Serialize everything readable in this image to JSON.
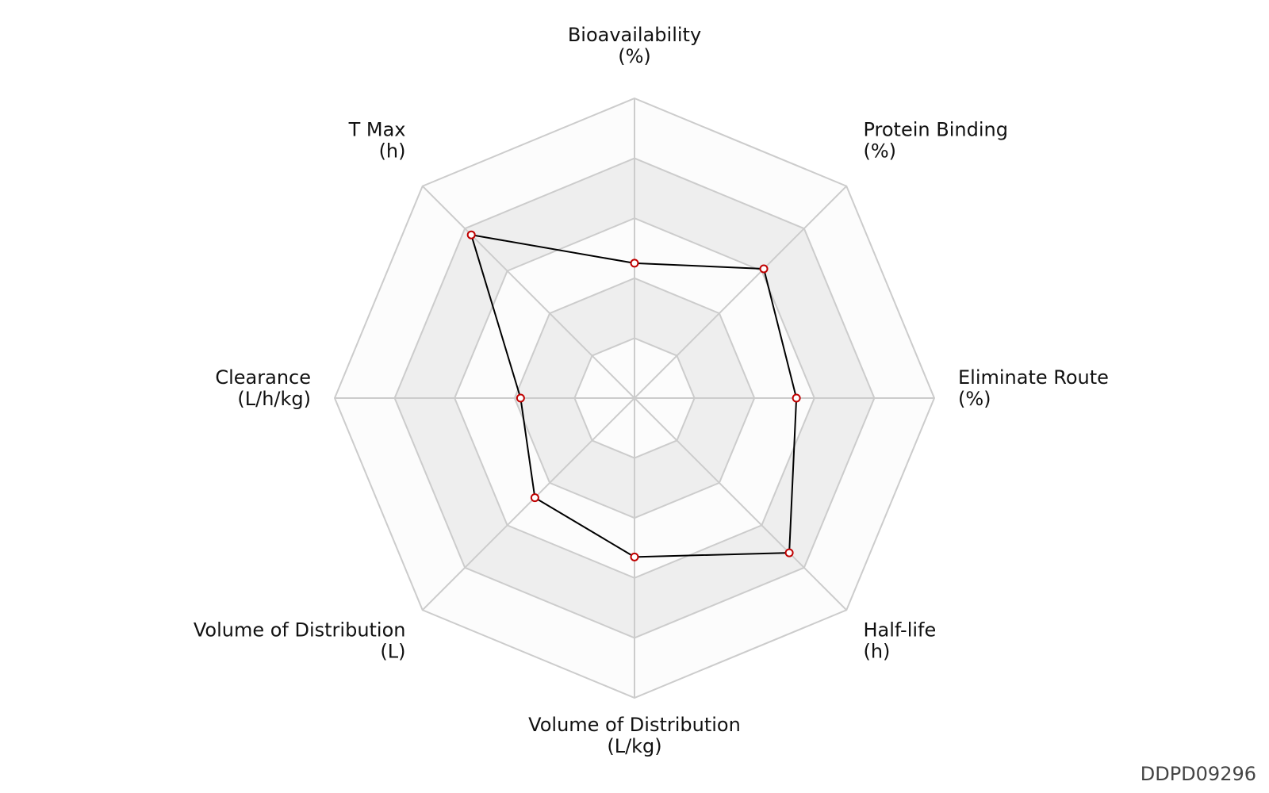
{
  "chart_data": {
    "type": "radar",
    "axes": [
      {
        "name": "Bioavailability",
        "unit": "(%)",
        "value": 0.45
      },
      {
        "name": "Protein Binding",
        "unit": "(%)",
        "value": 0.61
      },
      {
        "name": "Eliminate Route",
        "unit": "(%)",
        "value": 0.54
      },
      {
        "name": "Half-life",
        "unit": "(h)",
        "value": 0.73
      },
      {
        "name": "Volume of Distribution",
        "unit": "(L/kg)",
        "value": 0.53
      },
      {
        "name": "Volume of Distribution",
        "unit": "(L)",
        "value": 0.47
      },
      {
        "name": "Clearance",
        "unit": "(L/h/kg)",
        "value": 0.38
      },
      {
        "name": "T Max",
        "unit": "(h)",
        "value": 0.77
      }
    ],
    "rings": 5,
    "range": [
      0,
      1
    ]
  },
  "colors": {
    "grid": "#cccccc",
    "band_shaded": "#eeeeee",
    "band_light": "#fcfcfc",
    "line": "#000000",
    "marker_edge": "#c00000",
    "marker_fill": "#ffffff"
  },
  "watermark": "DDPD09296"
}
